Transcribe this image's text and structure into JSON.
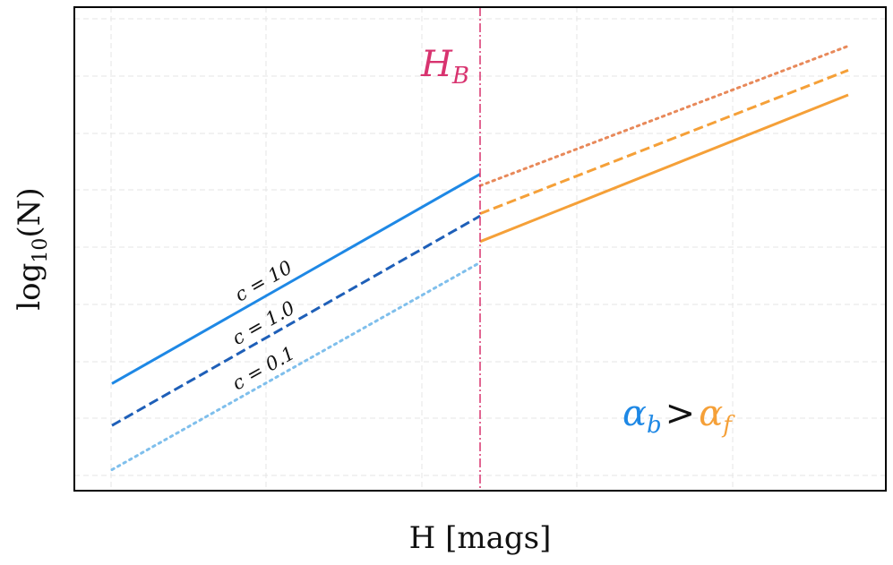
{
  "chart_data": {
    "type": "line",
    "xlabel": "H [mags]",
    "ylabel_base": "log",
    "ylabel_sub": "10",
    "ylabel_arg": "(N)",
    "x_ticks_labels": false,
    "y_ticks_labels": false,
    "grid": true,
    "break_label": {
      "base": "H",
      "sub": "B",
      "color": "#d8336f"
    },
    "break_x": 0.5,
    "xlim": [
      0,
      1.05
    ],
    "ylim": [
      0,
      1.0
    ],
    "colors": {
      "bright": [
        "#1e88e5",
        "#1e5fb8",
        "#7fbfec"
      ],
      "faint": [
        "#f5a038",
        "#f5a038",
        "#e8895a"
      ]
    },
    "series": [
      {
        "name": "c = 10",
        "style": "solid",
        "color": "#1e88e5",
        "x": [
          0.0,
          0.5
        ],
        "y": [
          0.23,
          0.68
        ]
      },
      {
        "name": "c = 1.0",
        "style": "dashed",
        "color": "#1e5fb8",
        "x": [
          0.0,
          0.5
        ],
        "y": [
          0.14,
          0.59
        ]
      },
      {
        "name": "c = 0.1",
        "style": "dotted",
        "color": "#7fbfec",
        "x": [
          0.0,
          0.5
        ],
        "y": [
          0.045,
          0.49
        ]
      },
      {
        "style": "solid",
        "color": "#f5a038",
        "x": [
          0.5,
          1.0
        ],
        "y": [
          0.535,
          0.85
        ]
      },
      {
        "style": "dashed",
        "color": "#f5a038",
        "x": [
          0.5,
          1.0
        ],
        "y": [
          0.595,
          0.903
        ]
      },
      {
        "style": "dotted",
        "color": "#e8895a",
        "x": [
          0.5,
          1.0
        ],
        "y": [
          0.655,
          0.955
        ]
      }
    ],
    "annotation": {
      "left": {
        "base": "α",
        "sub": "b",
        "color": "#1e88e5"
      },
      "op": ">",
      "right": {
        "base": "α",
        "sub": "f",
        "color": "#f5a038"
      }
    }
  }
}
